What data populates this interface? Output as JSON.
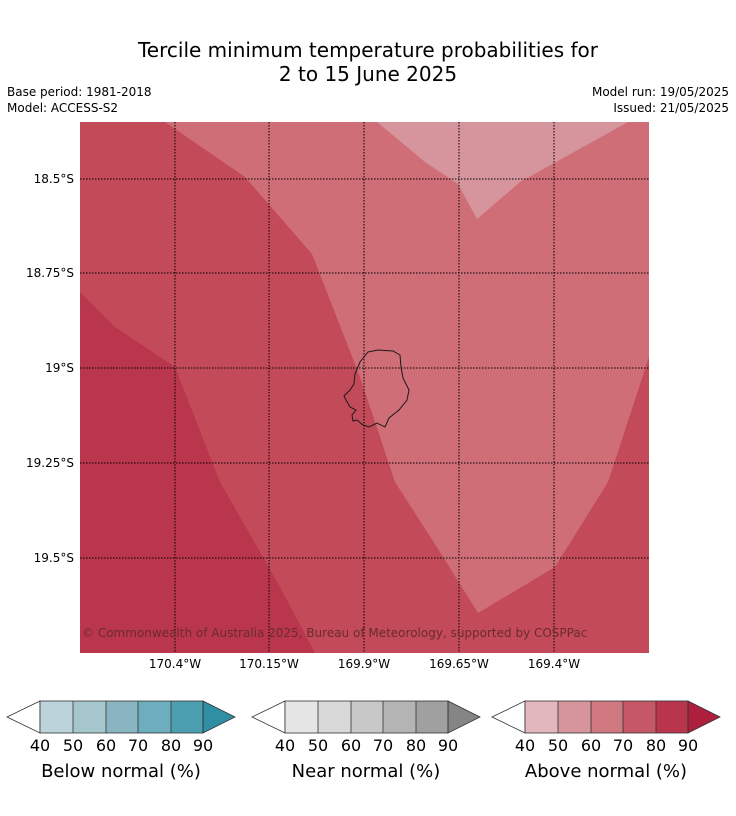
{
  "title_line1": "Tercile minimum temperature probabilities for",
  "title_line2": "2 to 15 June 2025",
  "base_period": "Base period: 1981-2018",
  "model": "Model: ACCESS-S2",
  "model_run": "Model run: 19/05/2025",
  "issued": "Issued: 21/05/2025",
  "copyright": "© Commonwealth of Australia 2025, Bureau of Meteorology, supported by COSPPac",
  "lat_labels": [
    "18.5°S",
    "18.75°S",
    "19°S",
    "19.25°S",
    "19.5°S"
  ],
  "lon_labels": [
    "170.4°W",
    "170.15°W",
    "169.9°W",
    "169.65°W",
    "169.4°W"
  ],
  "colorbars": [
    {
      "label": "Below normal (%)",
      "ticks": [
        "40",
        "50",
        "60",
        "70",
        "80",
        "90"
      ],
      "colors": [
        "#ffffff",
        "#bcd3da",
        "#a5c6cc",
        "#89b5c1",
        "#6dadbd",
        "#4b9fb1",
        "#2f8fa3"
      ]
    },
    {
      "label": "Near normal (%)",
      "ticks": [
        "40",
        "50",
        "60",
        "70",
        "80",
        "90"
      ],
      "colors": [
        "#ffffff",
        "#e5e5e5",
        "#d9d9d9",
        "#c8c8c8",
        "#b4b4b4",
        "#a0a0a0",
        "#858585"
      ]
    },
    {
      "label": "Above normal (%)",
      "ticks": [
        "40",
        "50",
        "60",
        "70",
        "80",
        "90"
      ],
      "colors": [
        "#ffffff",
        "#e2b7bd",
        "#d6959c",
        "#cf7880",
        "#c55766",
        "#b8354c",
        "#ad1f3c"
      ]
    }
  ],
  "map_colors": {
    "above_50_60": "#d6959c",
    "above_60_70": "#cf6e77",
    "above_70_80": "#c34a59",
    "above_80_90": "#ba364c",
    "island_outline": "#1a1a1a",
    "grid": "#000000"
  }
}
